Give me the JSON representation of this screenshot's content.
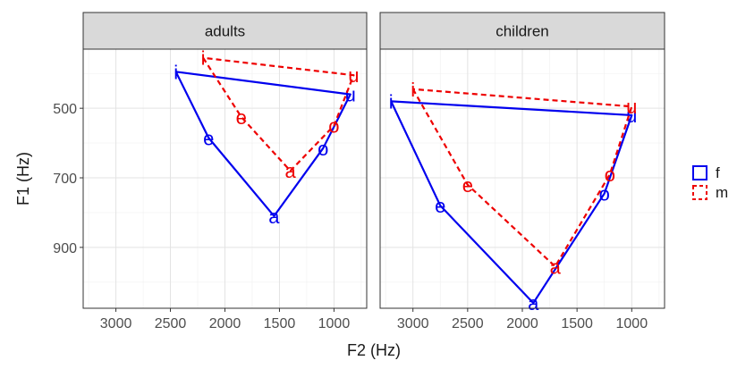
{
  "chart_data": {
    "type": "line",
    "xlabel": "F2 (Hz)",
    "ylabel": "F1 (Hz)",
    "x_reversed": true,
    "y_reversed": true,
    "xlim": [
      3300,
      700
    ],
    "ylim": [
      330,
      1075
    ],
    "x_ticks": [
      3000,
      2500,
      2000,
      1500,
      1000
    ],
    "y_ticks": [
      500,
      700,
      900
    ],
    "grid": true,
    "legend_position": "right",
    "panels": [
      {
        "title": "adults",
        "series": [
          {
            "name": "f",
            "color": "#0000ee",
            "dash": "solid",
            "points": [
              {
                "vowel": "i",
                "x": 2450,
                "y": 395
              },
              {
                "vowel": "e",
                "x": 2150,
                "y": 585
              },
              {
                "vowel": "a",
                "x": 1550,
                "y": 810
              },
              {
                "vowel": "o",
                "x": 1100,
                "y": 615
              },
              {
                "vowel": "u",
                "x": 850,
                "y": 460
              },
              {
                "vowel": "i",
                "x": 2450,
                "y": 395
              }
            ]
          },
          {
            "name": "m",
            "color": "#ee0000",
            "dash": "dashed",
            "points": [
              {
                "vowel": "i",
                "x": 2200,
                "y": 355
              },
              {
                "vowel": "e",
                "x": 1850,
                "y": 525
              },
              {
                "vowel": "a",
                "x": 1400,
                "y": 680
              },
              {
                "vowel": "o",
                "x": 1000,
                "y": 550
              },
              {
                "vowel": "u",
                "x": 820,
                "y": 405
              },
              {
                "vowel": "i",
                "x": 2200,
                "y": 355
              }
            ]
          }
        ]
      },
      {
        "title": "children",
        "series": [
          {
            "name": "f",
            "color": "#0000ee",
            "dash": "solid",
            "points": [
              {
                "vowel": "i",
                "x": 3200,
                "y": 480
              },
              {
                "vowel": "e",
                "x": 2750,
                "y": 780
              },
              {
                "vowel": "a",
                "x": 1900,
                "y": 1060
              },
              {
                "vowel": "o",
                "x": 1250,
                "y": 745
              },
              {
                "vowel": "u",
                "x": 1000,
                "y": 520
              },
              {
                "vowel": "i",
                "x": 3200,
                "y": 480
              }
            ]
          },
          {
            "name": "m",
            "color": "#ee0000",
            "dash": "dashed",
            "points": [
              {
                "vowel": "i",
                "x": 3000,
                "y": 445
              },
              {
                "vowel": "e",
                "x": 2500,
                "y": 720
              },
              {
                "vowel": "a",
                "x": 1700,
                "y": 955
              },
              {
                "vowel": "o",
                "x": 1200,
                "y": 690
              },
              {
                "vowel": "u",
                "x": 1000,
                "y": 495
              },
              {
                "vowel": "i",
                "x": 3000,
                "y": 445
              }
            ]
          }
        ]
      }
    ],
    "legend": [
      {
        "label": "f",
        "color": "#0000ee",
        "dash": "solid"
      },
      {
        "label": "m",
        "color": "#ee0000",
        "dash": "dashed"
      }
    ]
  }
}
